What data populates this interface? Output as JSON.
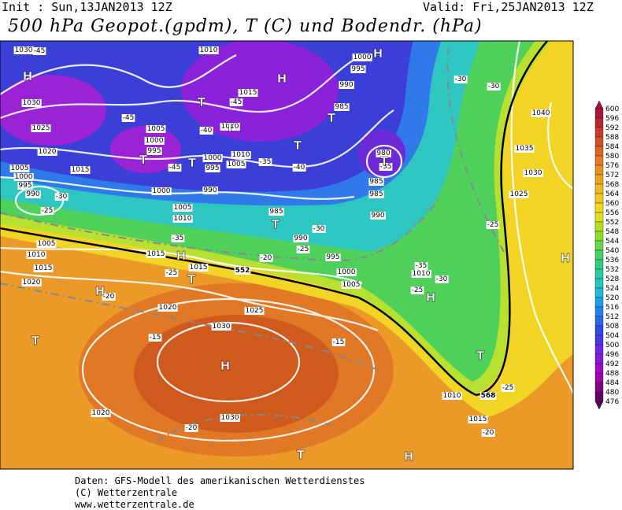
{
  "header": {
    "init": "Init : Sun,13JAN2013 12Z",
    "valid": "Valid: Fri,25JAN2013 12Z",
    "title": "500 hPa Geopot.(gpdm), T (C) und Bodendr. (hPa)"
  },
  "footer": [
    "Daten: GFS-Modell des amerikanischen Wetterdienstes",
    "(C) Wetterzentrale",
    "www.wetterzentrale.de"
  ],
  "colorbar": {
    "levels": [
      600,
      596,
      592,
      588,
      584,
      580,
      576,
      572,
      568,
      564,
      560,
      556,
      552,
      548,
      544,
      540,
      536,
      532,
      528,
      524,
      520,
      516,
      512,
      508,
      504,
      500,
      496,
      492,
      488,
      484,
      480,
      476
    ]
  },
  "map": {
    "highs": [
      "H",
      "H",
      "H",
      "H",
      "H",
      "H",
      "H",
      "H",
      "H"
    ],
    "lows": [
      "T",
      "T",
      "T",
      "T",
      "T",
      "T",
      "T",
      "T",
      "T",
      "T",
      "T",
      "T"
    ],
    "isobars": [
      "1030",
      "1030",
      "1025",
      "1020",
      "1015",
      "1005",
      "1000",
      "995",
      "990",
      "1010",
      "1015",
      "1005",
      "1000",
      "995",
      "1010",
      "1000",
      "1010",
      "1005",
      "995",
      "990",
      "1000",
      "1005",
      "1010",
      "985",
      "990",
      "995",
      "1000",
      "980",
      "985",
      "985",
      "990",
      "985",
      "990",
      "995",
      "1000",
      "1005",
      "1010",
      "1005",
      "1010",
      "1015",
      "1015",
      "1015",
      "1020",
      "1020",
      "1025",
      "1030",
      "1030",
      "1020",
      "1010",
      "1015",
      "1040",
      "1035",
      "1030",
      "1025"
    ],
    "temps": [
      "-45",
      "-45",
      "-45",
      "-40",
      "-45",
      "-35",
      "-40",
      "-30",
      "-25",
      "-30",
      "-25",
      "-35",
      "-20",
      "-25",
      "-20",
      "-15",
      "-15",
      "-20",
      "-20",
      "-25",
      "-30",
      "-30",
      "-25",
      "-25",
      "-30",
      "-35",
      "-35"
    ],
    "thickness": [
      "552",
      "568"
    ]
  }
}
